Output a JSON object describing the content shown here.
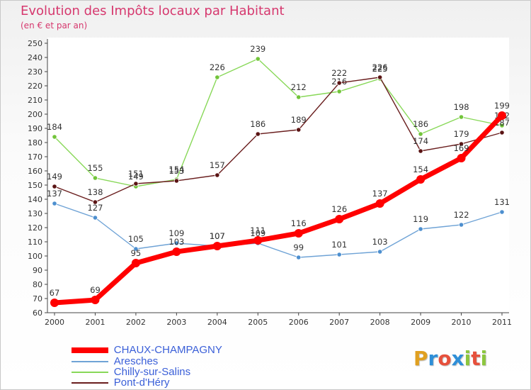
{
  "chart_data": {
    "type": "line",
    "title": "Evolution des Impôts locaux par Habitant",
    "subtitle": "(en € et par an)",
    "xlabel": "",
    "ylabel": "",
    "ylim": [
      60,
      250
    ],
    "ytick_step": 10,
    "grid": false,
    "legend_position": "bottom-left",
    "categories": [
      "2000",
      "2001",
      "2002",
      "2003",
      "2004",
      "2005",
      "2006",
      "2007",
      "2008",
      "2009",
      "2010",
      "2011"
    ],
    "series": [
      {
        "name": "Chilly-sur-Salins",
        "color": "#88d858",
        "marker": "#72c43a",
        "values": [
          184,
          155,
          149,
          154,
          226,
          239,
          212,
          216,
          225,
          186,
          198,
          192
        ],
        "labels": [
          "184",
          "155",
          "149",
          "154",
          "226",
          "239",
          "212",
          "216",
          "225",
          "186",
          "198",
          "192"
        ]
      },
      {
        "name": "Pont-d'Héry",
        "color": "#6a1e1e",
        "marker": "#5a1414",
        "values": [
          149,
          138,
          151,
          153,
          157,
          186,
          189,
          222,
          226,
          174,
          179,
          187
        ],
        "labels": [
          "149",
          "138",
          "151",
          "153",
          "157",
          "186",
          "189",
          "222",
          "226",
          "174",
          "179",
          "187"
        ]
      },
      {
        "name": "Aresches",
        "color": "#6fa3d6",
        "marker": "#4d8fcf",
        "values": [
          137,
          127,
          105,
          109,
          107,
          109,
          99,
          101,
          103,
          119,
          122,
          131
        ],
        "labels": [
          "137",
          "127",
          "105",
          "109",
          "107",
          "109",
          "99",
          "101",
          "103",
          "119",
          "122",
          "131"
        ]
      },
      {
        "name": "CHAUX-CHAMPAGNY",
        "color": "#ff0000",
        "marker": "#ff0000",
        "values": [
          67,
          69,
          95,
          103,
          107,
          111,
          116,
          126,
          137,
          154,
          169,
          199
        ],
        "labels": [
          "67",
          "69",
          "95",
          "103",
          "107",
          "111",
          "116",
          "126",
          "137",
          "154",
          "169",
          "199"
        ]
      }
    ],
    "legend": [
      {
        "name": "CHAUX-CHAMPAGNY",
        "color": "#ff0000",
        "text_color": "#3a5fd8"
      },
      {
        "name": "Aresches",
        "color": "#6fa3d6",
        "text_color": "#3a5fd8"
      },
      {
        "name": "Chilly-sur-Salins",
        "color": "#88d858",
        "text_color": "#3a5fd8"
      },
      {
        "name": "Pont-d'Héry",
        "color": "#6a1e1e",
        "text_color": "#3a5fd8"
      }
    ]
  },
  "logo": {
    "letters": [
      "P",
      "r",
      "o",
      "x",
      "i",
      "t",
      "i"
    ],
    "colors": [
      "#e0a020",
      "#2e8fd8",
      "#e6503c",
      "#2e8fd8",
      "#8cc63f",
      "#e6503c",
      "#8cc63f"
    ]
  }
}
